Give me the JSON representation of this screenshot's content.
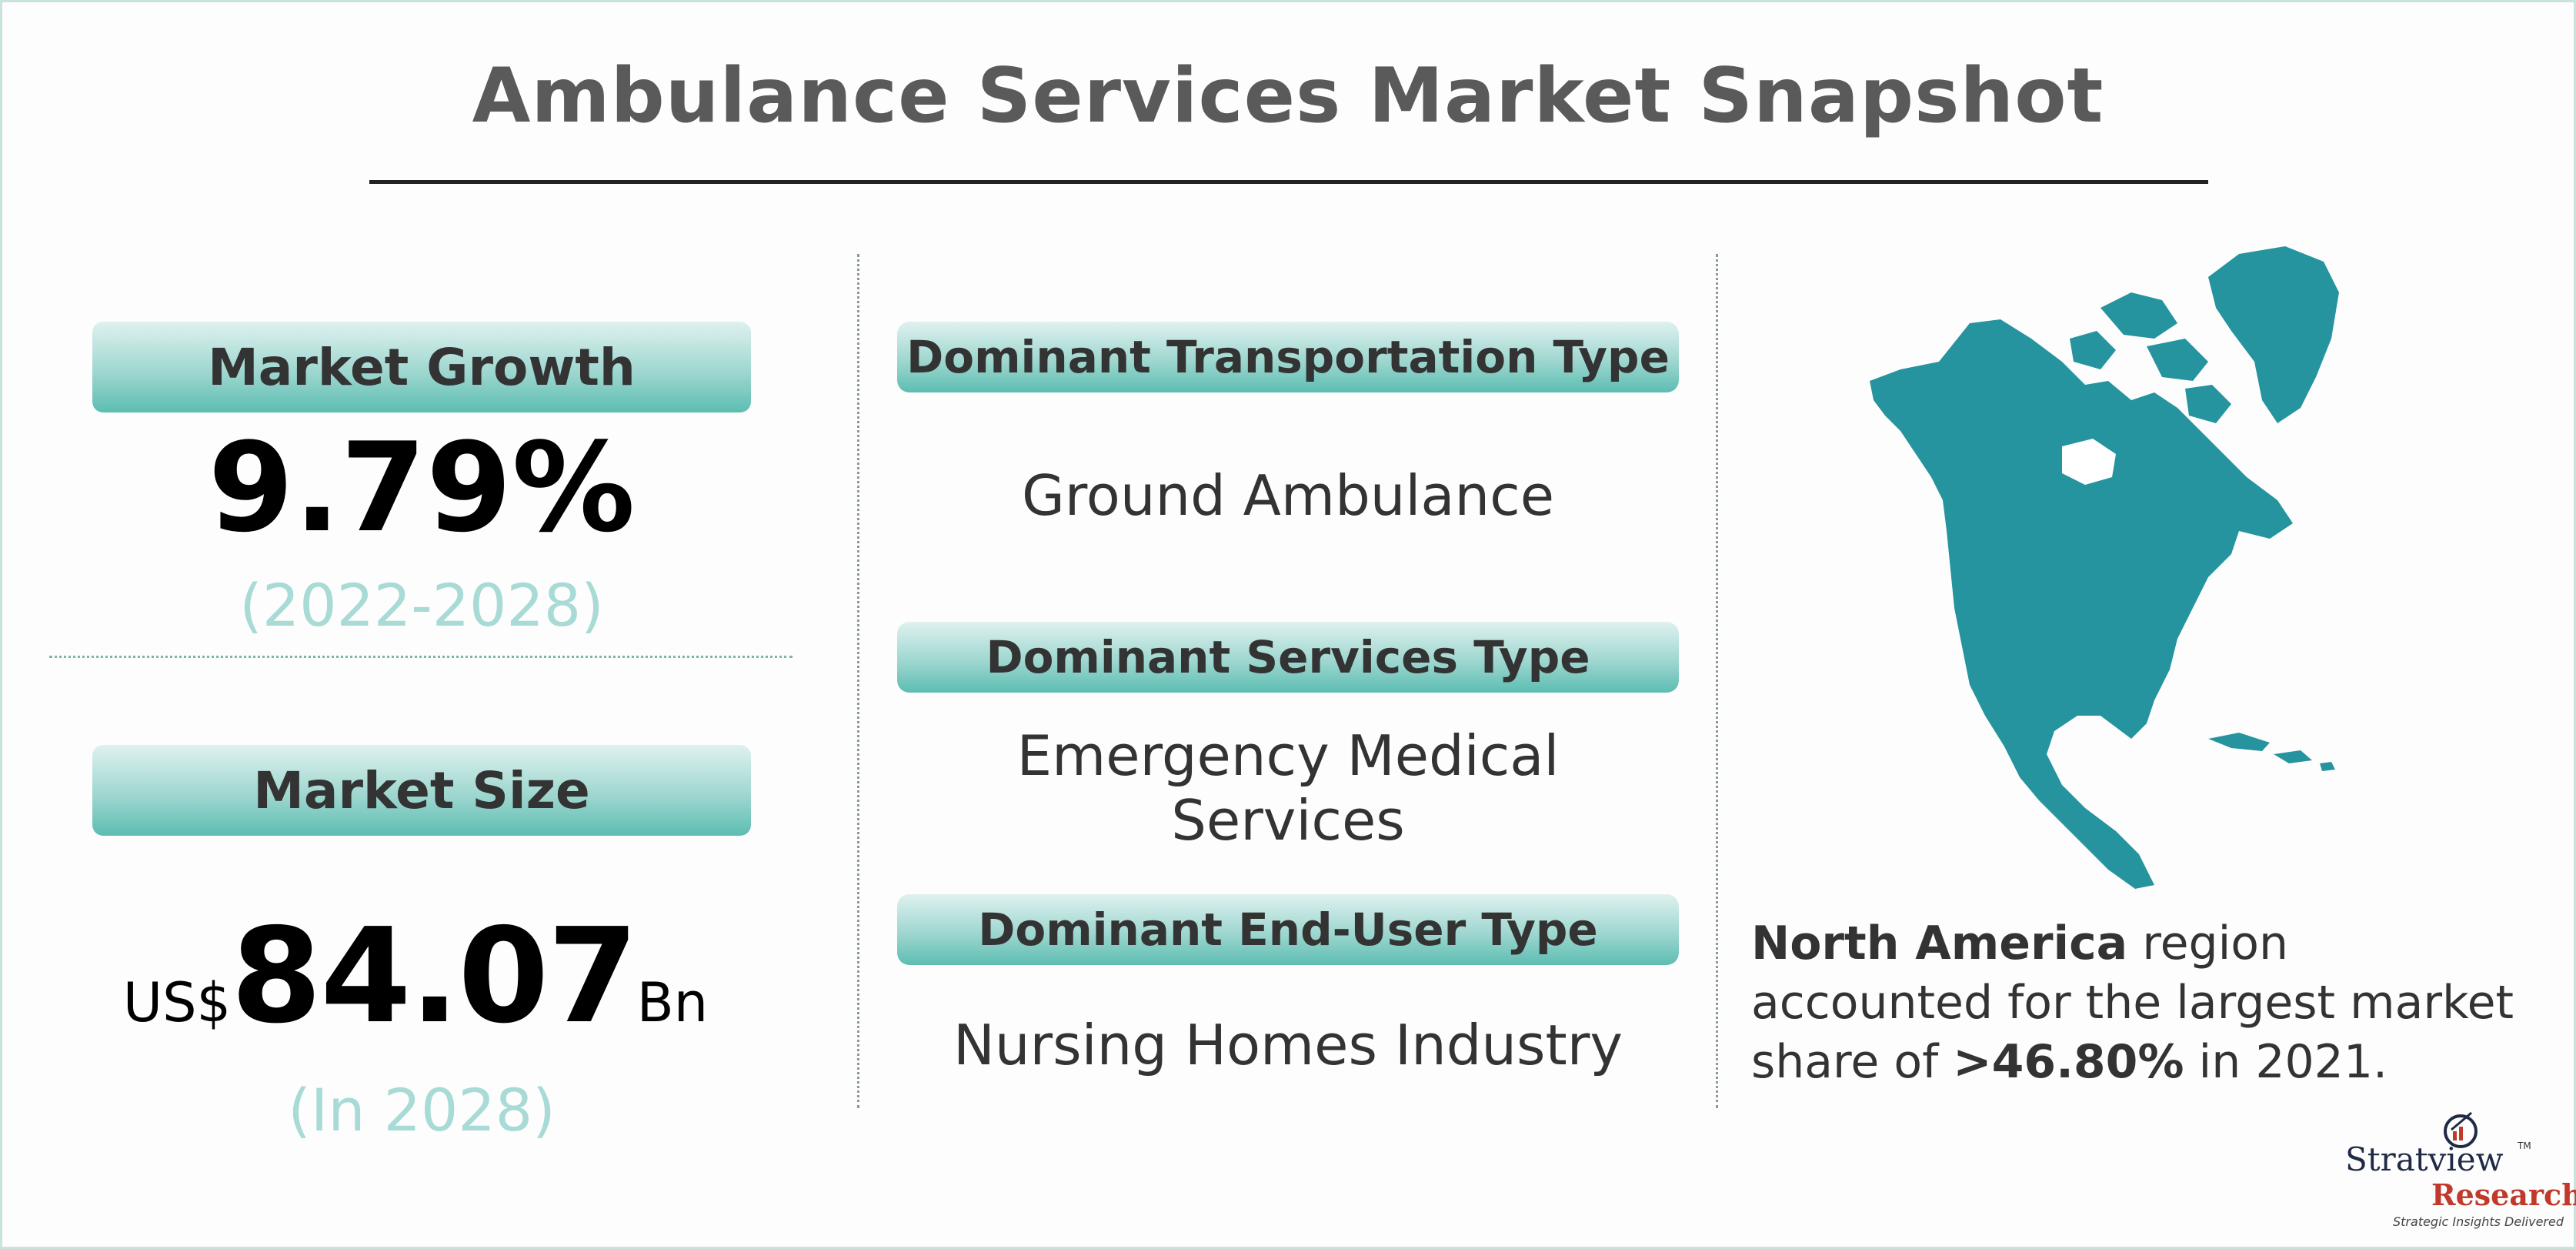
{
  "title": "Ambulance Services Market Snapshot",
  "market_growth": {
    "label": "Market Growth",
    "value": "9.79%",
    "period": "(2022-2028)"
  },
  "market_size": {
    "label": "Market Size",
    "prefix": "US$",
    "value": "84.07",
    "suffix": "Bn",
    "period": "(In 2028)"
  },
  "dominant": [
    {
      "label": "Dominant Transportation Type",
      "value": "Ground Ambulance"
    },
    {
      "label": "Dominant Services Type",
      "value_line1": "Emergency Medical",
      "value_line2": "Services"
    },
    {
      "label": "Dominant End-User Type",
      "value": "Nursing Homes Industry"
    }
  ],
  "region": {
    "name": "North America",
    "text1": " region accounted for the largest market share of ",
    "share": ">46.80%",
    "text2": " in 2021."
  },
  "logo": {
    "word": "Stratview",
    "tm": "TM",
    "research": "Research",
    "tagline": "Strategic Insights Delivered"
  },
  "colors": {
    "accent": "#5cbdb2",
    "map": "#25949e",
    "subtext": "#a8dbd5",
    "title": "#5a5a5a"
  },
  "icons": [
    "north-america-map",
    "stratview-logo-icon"
  ]
}
